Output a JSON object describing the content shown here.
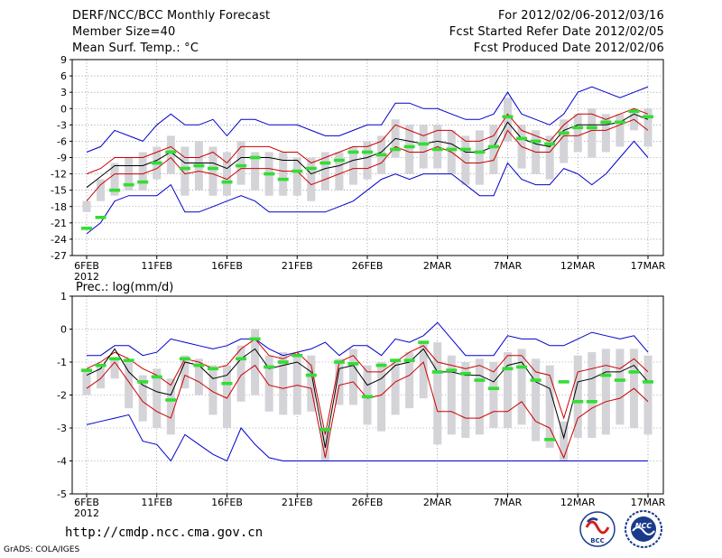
{
  "header": {
    "title": "DERF/NCC/BCC Monthly Forecast",
    "member_size": "Member Size=40",
    "variable": "Mean Surf. Temp.: °C",
    "for_range": "For 2012/02/06-2012/03/16",
    "fcst_started": "Fcst Started Refer Date 2012/02/05",
    "fcst_produced": "Fcst Produced Date 2012/02/06"
  },
  "footer": {
    "url": "http://cmdp.ncc.cma.gov.cn",
    "grads_credit": "GrADS: COLA/IGES",
    "logo_bcc": "BCC",
    "logo_ncc": "NCC"
  },
  "colors": {
    "ensemble_max_min": "#0000cc",
    "ensemble_spread": "#cc0000",
    "ensemble_mean": "#000000",
    "observation": "#33dd33",
    "box": "#d3d3d8",
    "grid": "#666666"
  },
  "chart_data": [
    {
      "type": "box",
      "title": "Mean Surf. Temp.: °C",
      "xlabel": "",
      "ylabel": "°C",
      "ylim": [
        -27,
        9
      ],
      "yticks": [
        9,
        6,
        3,
        0,
        -3,
        -6,
        -9,
        -12,
        -15,
        -18,
        -21,
        -24,
        -27
      ],
      "x_tick_labels": [
        "6FEB",
        "11FEB",
        "16FEB",
        "21FEB",
        "26FEB",
        "2MAR",
        "7MAR",
        "12MAR",
        "17MAR"
      ],
      "x_tick_days": [
        0,
        5,
        10,
        15,
        20,
        25,
        30,
        35,
        40
      ],
      "year_label": "2012",
      "series": [
        {
          "name": "max",
          "values": [
            -8,
            -7,
            -4,
            -5,
            -6,
            -3,
            -1,
            -3,
            -3,
            -2,
            -5,
            -2,
            -2,
            -3,
            -3,
            -3,
            -4,
            -5,
            -5,
            -4,
            -3,
            -3,
            1,
            1,
            0,
            0,
            -1,
            -2,
            -2,
            -1,
            3,
            -1,
            -2,
            -3,
            -1,
            3,
            4,
            3,
            2,
            3,
            4
          ]
        },
        {
          "name": "upper_spread",
          "values": [
            -12,
            -11,
            -9,
            -9,
            -9,
            -8,
            -7,
            -9,
            -9,
            -8,
            -10,
            -7,
            -7,
            -7,
            -8,
            -8,
            -10,
            -9,
            -8,
            -7,
            -7,
            -6,
            -3,
            -4,
            -5,
            -4,
            -4,
            -6,
            -6,
            -5,
            -1,
            -4,
            -5,
            -6,
            -3,
            -1,
            -1,
            -2,
            -1,
            0,
            -1
          ]
        },
        {
          "name": "mean",
          "values": [
            -14.5,
            -12.5,
            -10.5,
            -10.5,
            -10.5,
            -9.5,
            -8,
            -10,
            -10,
            -10,
            -11,
            -9,
            -9,
            -9,
            -9.5,
            -9.5,
            -12,
            -11,
            -10.5,
            -9.5,
            -9,
            -8,
            -5.5,
            -6,
            -6.5,
            -6,
            -6.5,
            -8,
            -8,
            -7,
            -2.5,
            -5.5,
            -6.5,
            -7,
            -4,
            -3,
            -3,
            -3,
            -2.5,
            -1,
            -2
          ]
        },
        {
          "name": "lower_spread",
          "values": [
            -17,
            -14,
            -12,
            -12,
            -12,
            -11,
            -9,
            -12,
            -11.5,
            -12,
            -13,
            -11,
            -11,
            -11,
            -11.5,
            -11.5,
            -14,
            -13,
            -12,
            -11,
            -11,
            -10,
            -7,
            -8,
            -8,
            -7,
            -8,
            -10,
            -10,
            -9.5,
            -4,
            -7,
            -8,
            -8,
            -5,
            -5,
            -4,
            -4,
            -3,
            -2,
            -4
          ]
        },
        {
          "name": "min",
          "values": [
            -23,
            -21,
            -17,
            -16,
            -16,
            -16,
            -14,
            -19,
            -19,
            -18,
            -17,
            -16,
            -17,
            -19,
            -19,
            -19,
            -19,
            -19,
            -18,
            -17,
            -15,
            -13,
            -12,
            -13,
            -12,
            -12,
            -12,
            -14,
            -16,
            -16,
            -10,
            -13,
            -14,
            -14,
            -11,
            -12,
            -14,
            -12,
            -9,
            -6,
            -9
          ]
        },
        {
          "name": "box_q1",
          "values": [
            -19,
            -17,
            -16,
            -15,
            -15,
            -13,
            -12,
            -16,
            -15,
            -16,
            -16,
            -14,
            -15,
            -16,
            -16,
            -16,
            -17,
            -15,
            -15,
            -14,
            -13,
            -12,
            -9,
            -12,
            -11,
            -11,
            -12,
            -14,
            -14,
            -12,
            -6,
            -11,
            -12,
            -13,
            -10,
            -8,
            -9,
            -8,
            -7,
            -4,
            -7
          ]
        },
        {
          "name": "box_q3",
          "values": [
            -17,
            -13,
            -10,
            -9,
            -8,
            -7,
            -5,
            -7,
            -6,
            -7,
            -8,
            -6,
            -8,
            -8,
            -8,
            -9,
            -9,
            -8,
            -8,
            -7,
            -6,
            -5,
            -2,
            -3,
            -3,
            -3,
            -4,
            -5,
            -4,
            -3,
            2,
            -3,
            -4,
            -5,
            -2,
            -1,
            0,
            -1,
            -1,
            0,
            0
          ]
        },
        {
          "name": "observation",
          "values": [
            -22,
            -20,
            -15,
            -14,
            -13.5,
            -10,
            -8,
            -11,
            -10.5,
            -11,
            -13.5,
            -10.5,
            -9,
            -12,
            -13,
            -11.5,
            -11,
            -10,
            -9.5,
            -8,
            -8,
            -8.5,
            -7.5,
            -7,
            -6.5,
            -7.5,
            -7.5,
            -7.5,
            -8,
            -7,
            -1.5,
            -5.5,
            -6,
            -6.5,
            -4.5,
            -3.5,
            -3.5,
            -2.5,
            -2.5,
            -0.5,
            -1.5
          ]
        }
      ]
    },
    {
      "type": "box",
      "title": "Prec.: log(mm/d)",
      "xlabel": "",
      "ylabel": "log(mm/d)",
      "ylim": [
        -5,
        1
      ],
      "yticks": [
        1,
        0,
        -1,
        -2,
        -3,
        -4,
        -5
      ],
      "x_tick_labels": [
        "6FEB",
        "11FEB",
        "16FEB",
        "21FEB",
        "26FEB",
        "2MAR",
        "7MAR",
        "12MAR",
        "17MAR"
      ],
      "x_tick_days": [
        0,
        5,
        10,
        15,
        20,
        25,
        30,
        35,
        40
      ],
      "year_label": "2012",
      "series": [
        {
          "name": "max",
          "values": [
            -0.8,
            -0.8,
            -0.5,
            -0.5,
            -0.8,
            -0.7,
            -0.3,
            -0.4,
            -0.5,
            -0.6,
            -0.5,
            -0.3,
            -0.3,
            -0.6,
            -0.8,
            -0.7,
            -0.6,
            -0.4,
            -0.8,
            -0.5,
            -0.5,
            -0.8,
            -0.3,
            -0.4,
            -0.2,
            0.2,
            -0.3,
            -0.8,
            -0.8,
            -0.8,
            -0.2,
            -0.3,
            -0.3,
            -0.5,
            -0.5,
            -0.3,
            -0.1,
            -0.2,
            -0.3,
            -0.2,
            -0.7
          ]
        },
        {
          "name": "upper_spread",
          "values": [
            -1.2,
            -1.0,
            -0.7,
            -0.9,
            -1.2,
            -1.4,
            -1.7,
            -0.9,
            -1.0,
            -1.2,
            -1.1,
            -0.6,
            -0.3,
            -0.8,
            -0.9,
            -0.7,
            -1.1,
            -3.2,
            -1.0,
            -0.8,
            -1.3,
            -1.3,
            -1.0,
            -0.7,
            -0.5,
            -1.0,
            -1.1,
            -1.2,
            -1.1,
            -1.3,
            -0.8,
            -0.8,
            -1.3,
            -1.4,
            -2.7,
            -1.3,
            -1.2,
            -1.1,
            -1.2,
            -0.9,
            -1.3
          ]
        },
        {
          "name": "mean",
          "values": [
            -1.4,
            -1.2,
            -0.6,
            -1.3,
            -1.7,
            -1.9,
            -2.0,
            -1.0,
            -1.1,
            -1.5,
            -1.4,
            -0.9,
            -0.6,
            -1.2,
            -1.1,
            -1.0,
            -1.3,
            -3.6,
            -1.2,
            -1.1,
            -1.7,
            -1.5,
            -1.1,
            -1.0,
            -0.6,
            -1.3,
            -1.3,
            -1.4,
            -1.4,
            -1.6,
            -1.1,
            -1.0,
            -1.6,
            -1.8,
            -3.3,
            -1.6,
            -1.5,
            -1.3,
            -1.3,
            -1.1,
            -1.6
          ]
        },
        {
          "name": "lower_spread",
          "values": [
            -1.8,
            -1.5,
            -1.0,
            -1.6,
            -2.2,
            -2.5,
            -2.7,
            -1.4,
            -1.6,
            -1.9,
            -2.1,
            -1.4,
            -1.1,
            -1.7,
            -1.8,
            -1.7,
            -1.8,
            -3.9,
            -1.7,
            -1.6,
            -2.1,
            -2.0,
            -1.6,
            -1.4,
            -1.0,
            -2.5,
            -2.5,
            -2.7,
            -2.7,
            -2.5,
            -2.5,
            -2.2,
            -2.8,
            -3.0,
            -3.9,
            -2.7,
            -2.4,
            -2.2,
            -2.1,
            -1.8,
            -2.2
          ]
        },
        {
          "name": "min",
          "values": [
            -2.9,
            -2.8,
            -2.7,
            -2.6,
            -3.4,
            -3.5,
            -4.0,
            -3.2,
            -3.5,
            -3.8,
            -4.0,
            -3.0,
            -3.5,
            -3.9,
            -4.0,
            -4.0,
            -4.0,
            -4.0,
            -4.0,
            -4.0,
            -4.0,
            -4.0,
            -4.0,
            -4.0,
            -4.0,
            -4.0,
            -4.0,
            -4.0,
            -4.0,
            -4.0,
            -4.0,
            -4.0,
            -4.0,
            -4.0,
            -4.0,
            -4.0,
            -4.0,
            -4.0,
            -4.0,
            -4.0,
            -4.0
          ]
        },
        {
          "name": "box_q1",
          "values": [
            -2.0,
            -1.8,
            -1.5,
            -2.4,
            -2.8,
            -3.0,
            -3.2,
            -1.8,
            -2.0,
            -2.6,
            -3.0,
            -2.2,
            -2.0,
            -2.5,
            -2.6,
            -2.6,
            -2.5,
            -4.0,
            -2.3,
            -2.3,
            -2.9,
            -3.1,
            -2.6,
            -2.4,
            -2.1,
            -3.5,
            -3.2,
            -3.3,
            -3.2,
            -3.0,
            -3.0,
            -2.9,
            -3.4,
            -3.6,
            -4.0,
            -3.3,
            -3.3,
            -3.2,
            -2.9,
            -3.0,
            -3.2
          ]
        },
        {
          "name": "box_q3",
          "values": [
            -1.2,
            -1.1,
            -0.9,
            -1.0,
            -1.4,
            -1.2,
            -1.5,
            -0.8,
            -0.9,
            -1.1,
            -1.1,
            -0.5,
            0.0,
            -0.8,
            -0.7,
            -0.8,
            -0.8,
            -3.0,
            -0.9,
            -0.6,
            -1.1,
            -1.0,
            -0.9,
            -0.7,
            -0.4,
            -0.4,
            -0.8,
            -1.0,
            -0.9,
            -1.0,
            -0.7,
            -0.6,
            -0.9,
            -1.1,
            -2.8,
            -0.8,
            -0.7,
            -0.6,
            -0.6,
            -0.6,
            -0.8
          ]
        },
        {
          "name": "observation",
          "values": [
            -1.25,
            -1.1,
            -0.9,
            -0.95,
            -1.6,
            -1.45,
            -2.15,
            -0.9,
            -1.1,
            -1.2,
            -1.65,
            -0.9,
            -0.3,
            -1.15,
            -1.0,
            -0.8,
            -1.4,
            -3.05,
            -1.0,
            -1.05,
            -2.05,
            -1.1,
            -0.95,
            -0.95,
            -0.4,
            -1.3,
            -1.25,
            -1.35,
            -1.55,
            -1.8,
            -1.2,
            -1.15,
            -1.55,
            -3.35,
            -1.6,
            -2.2,
            -2.2,
            -1.4,
            -1.55,
            -1.3,
            -1.6
          ]
        }
      ]
    }
  ]
}
